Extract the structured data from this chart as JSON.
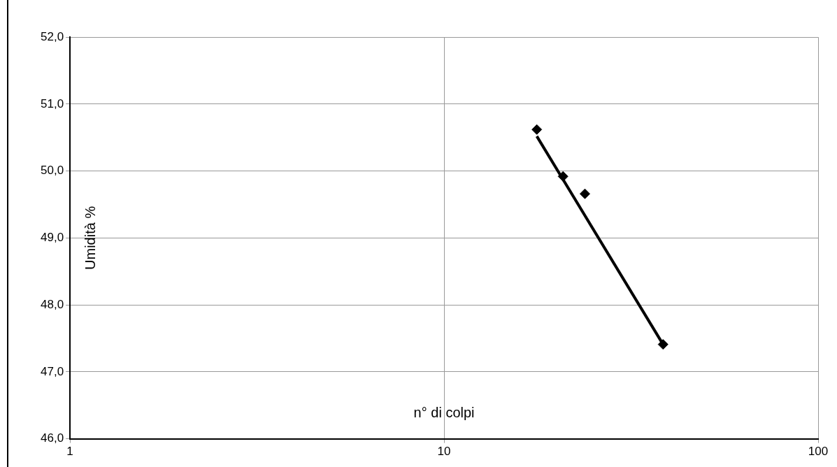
{
  "chart_data": {
    "type": "scatter",
    "xlabel": "n° di colpi",
    "ylabel": "Umidità %",
    "log": "x",
    "grid": true,
    "legend": false,
    "xlim": [
      1,
      100
    ],
    "xticks": [
      1,
      10,
      100
    ],
    "ylim": [
      46,
      52
    ],
    "yticks": [
      {
        "value": 46,
        "label": "46,0"
      },
      {
        "value": 47,
        "label": "47,0"
      },
      {
        "value": 48,
        "label": "48,0"
      },
      {
        "value": 49,
        "label": "49,0"
      },
      {
        "value": 50,
        "label": "50,0"
      },
      {
        "value": 51,
        "label": "51,0"
      },
      {
        "value": 52,
        "label": "52,0"
      }
    ],
    "series": [
      {
        "color": "#000000",
        "marker": "diamond",
        "x": [
          17.7,
          20.8,
          23.8,
          38.5
        ],
        "values": [
          50.62,
          49.92,
          49.66,
          47.41
        ]
      },
      {
        "type": "line",
        "color": "#000000",
        "marker": "none",
        "line_style": "solid",
        "x": [
          17.7,
          38.5
        ],
        "values": [
          50.52,
          47.41
        ]
      }
    ]
  }
}
